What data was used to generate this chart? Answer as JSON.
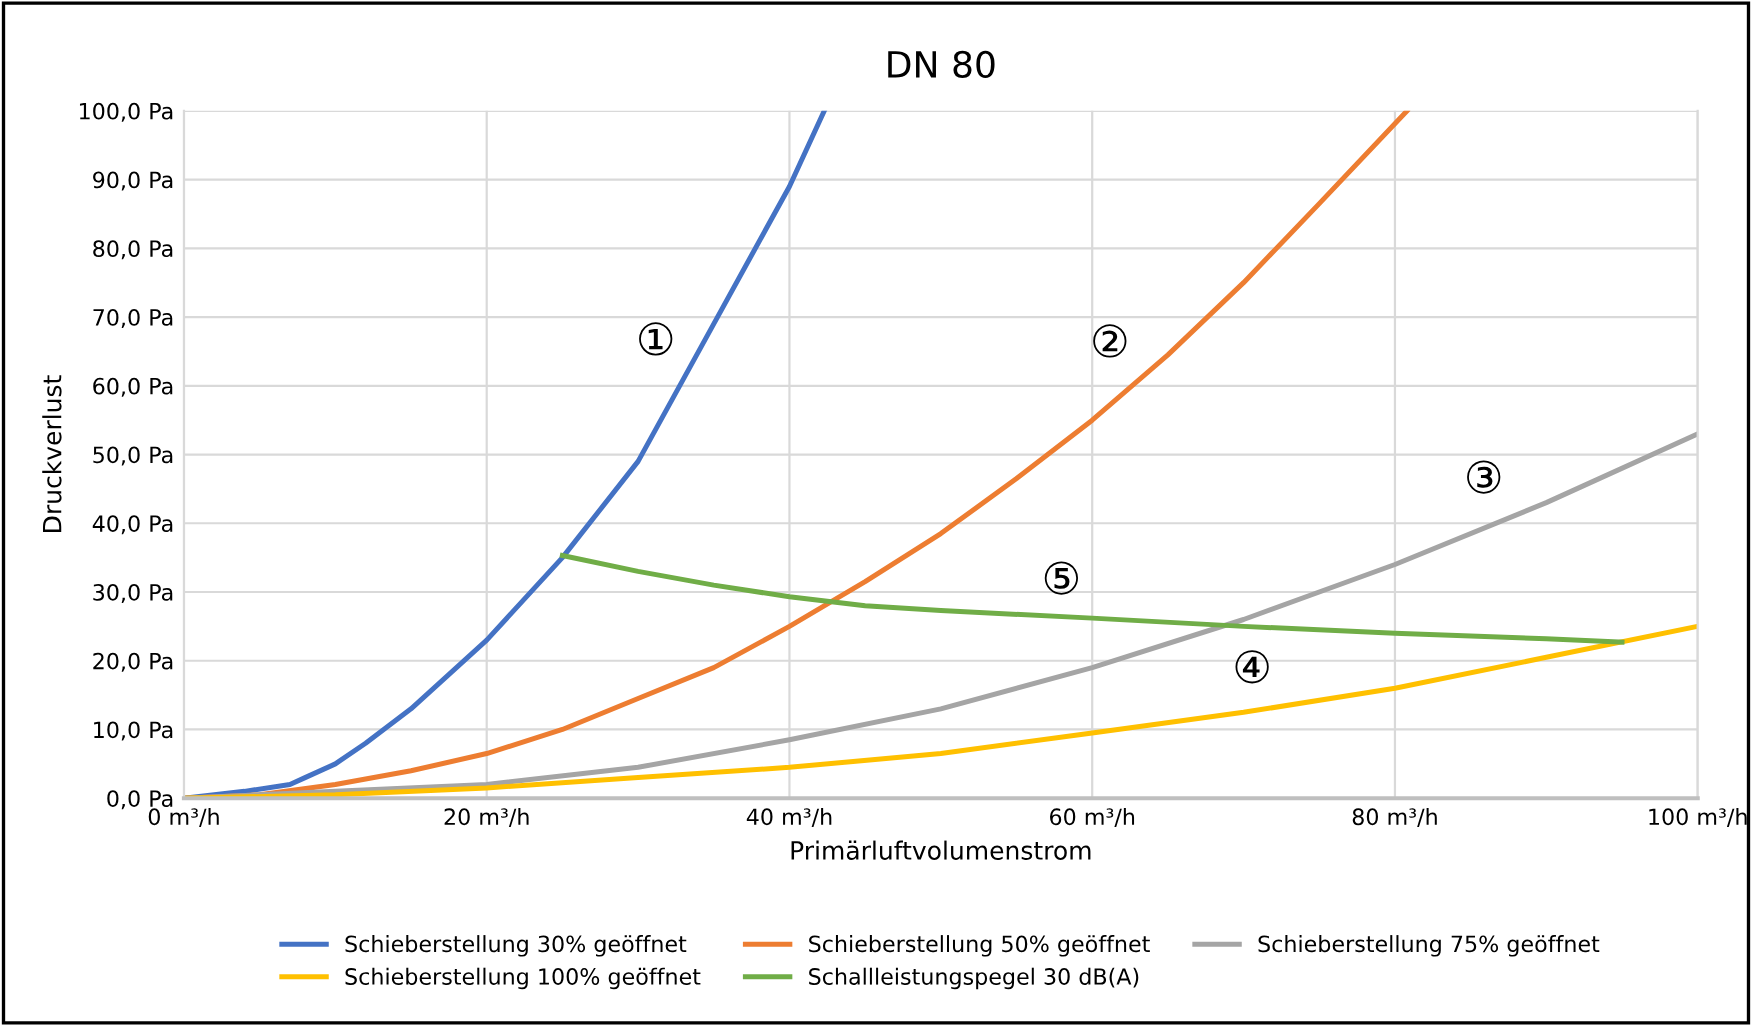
{
  "chart_data": {
    "type": "line",
    "title": "DN 80",
    "xlabel": "Primärluftvolumenstrom",
    "ylabel": "Druckverlust",
    "xlim": [
      0,
      100
    ],
    "ylim": [
      0,
      100
    ],
    "xticks": [
      {
        "value": 0,
        "label": "0 m³/h"
      },
      {
        "value": 20,
        "label": "20 m³/h"
      },
      {
        "value": 40,
        "label": "40 m³/h"
      },
      {
        "value": 60,
        "label": "60 m³/h"
      },
      {
        "value": 80,
        "label": "80 m³/h"
      },
      {
        "value": 100,
        "label": "100 m³/h"
      }
    ],
    "yticks": [
      {
        "value": 0,
        "label": "0,0 Pa"
      },
      {
        "value": 10,
        "label": "10,0 Pa"
      },
      {
        "value": 20,
        "label": "20,0 Pa"
      },
      {
        "value": 30,
        "label": "30,0 Pa"
      },
      {
        "value": 40,
        "label": "40,0 Pa"
      },
      {
        "value": 50,
        "label": "50,0 Pa"
      },
      {
        "value": 60,
        "label": "60,0 Pa"
      },
      {
        "value": 70,
        "label": "70,0 Pa"
      },
      {
        "value": 80,
        "label": "80,0 Pa"
      },
      {
        "value": 90,
        "label": "90,0 Pa"
      },
      {
        "value": 100,
        "label": "100,0 Pa"
      }
    ],
    "grid": true,
    "legend": "bottom",
    "marker": "none",
    "line_style": "solid",
    "series": [
      {
        "name": "Schieberstellung 30% geöffnet",
        "color": "#4472c4",
        "x": [
          0,
          4,
          7,
          8,
          10,
          12,
          15,
          20,
          25,
          30,
          35,
          40,
          42.3
        ],
        "values": [
          0,
          1,
          2,
          3,
          5,
          8,
          13,
          23,
          35,
          49,
          69,
          89,
          100
        ]
      },
      {
        "name": "Schieberstellung 50% geöffnet",
        "color": "#ed7d31",
        "x": [
          0,
          5,
          10,
          15,
          20,
          25,
          30,
          35,
          40,
          45,
          50,
          55,
          60,
          65,
          70,
          75,
          80.8
        ],
        "values": [
          0,
          0.5,
          2,
          4,
          6.5,
          10,
          14.5,
          19,
          25,
          31.5,
          38.5,
          46.5,
          55,
          64.5,
          75,
          86.5,
          100
        ]
      },
      {
        "name": "Schieberstellung 75% geöffnet",
        "color": "#a5a5a5",
        "x": [
          0,
          10,
          20,
          30,
          40,
          50,
          60,
          70,
          80,
          90,
          100
        ],
        "values": [
          0,
          1,
          2,
          4.5,
          8.5,
          13,
          19,
          26,
          34,
          43,
          53
        ]
      },
      {
        "name": "Schieberstellung 100% geöffnet",
        "color": "#ffc000",
        "x": [
          0,
          10,
          20,
          30,
          40,
          50,
          60,
          70,
          80,
          90,
          100
        ],
        "values": [
          0,
          0.5,
          1.5,
          3,
          4.5,
          6.5,
          9.5,
          12.5,
          16,
          20.5,
          25
        ]
      },
      {
        "name": "Schallleistungspegel 30 dB(A)",
        "color": "#70ad47",
        "x": [
          25,
          30,
          35,
          40,
          45,
          50,
          60,
          70,
          80,
          90,
          95
        ],
        "values": [
          35.3,
          33,
          31,
          29.3,
          28,
          27.3,
          26.2,
          25,
          24,
          23.2,
          22.7
        ]
      }
    ],
    "annotations": [
      {
        "text": "①",
        "x": 33,
        "y": 61
      },
      {
        "text": "②",
        "x": 63,
        "y": 60.7
      },
      {
        "text": "③",
        "x": 87.7,
        "y": 40.9
      },
      {
        "text": "④",
        "x": 72.4,
        "y": 13.3
      },
      {
        "text": "⑤",
        "x": 59.8,
        "y": 26.2
      }
    ]
  }
}
